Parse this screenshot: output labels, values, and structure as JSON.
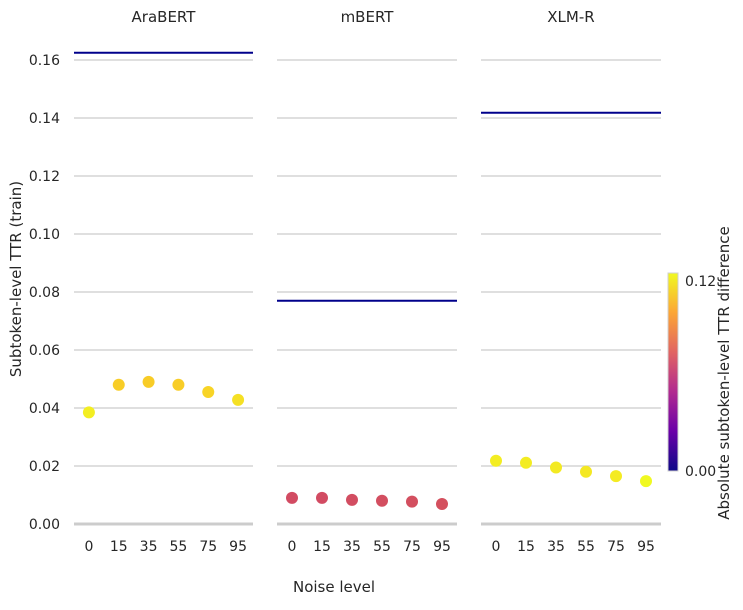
{
  "chart_data": {
    "type": "scatter",
    "ylabel": "Subtoken-level TTR (train)",
    "xlabel": "Noise level",
    "ylim": [
      0.0,
      0.165
    ],
    "y_ticks": [
      0.0,
      0.02,
      0.04,
      0.06,
      0.08,
      0.1,
      0.12,
      0.14,
      0.16
    ],
    "y_tick_labels": [
      "0.00",
      "0.02",
      "0.04",
      "0.06",
      "0.08",
      "0.10",
      "0.12",
      "0.14",
      "0.16"
    ],
    "categories": [
      "0",
      "15",
      "35",
      "55",
      "75",
      "95"
    ],
    "grid": "horizontal",
    "colorbar": {
      "label": "Absolute subtoken-level TTR difference",
      "range": [
        0.0,
        0.125
      ],
      "ticks": [
        0.0,
        0.12
      ],
      "tick_labels": [
        "0.00",
        "0.12"
      ],
      "colormap": "plasma",
      "stops": [
        "#0d0887",
        "#6a00a8",
        "#b12a90",
        "#e16462",
        "#fca636",
        "#f0f921"
      ]
    },
    "reference_line_color": "#00008b",
    "panels": [
      {
        "title": "AraBERT",
        "reference_value": 0.1625,
        "values": [
          0.0385,
          0.048,
          0.049,
          0.048,
          0.0455,
          0.0428
        ],
        "point_colors": [
          "#f3ee22",
          "#f8cd27",
          "#f8cc27",
          "#f8cd27",
          "#f8d426",
          "#f5e024"
        ]
      },
      {
        "title": "mBERT",
        "reference_value": 0.077,
        "values": [
          0.009,
          0.009,
          0.0083,
          0.008,
          0.0077,
          0.0069
        ],
        "point_colors": [
          "#d24b62",
          "#d24b62",
          "#d24d61",
          "#d34e60",
          "#d34f5f",
          "#d4505e"
        ]
      },
      {
        "title": "XLM-R",
        "reference_value": 0.1418,
        "values": [
          0.0218,
          0.0211,
          0.0195,
          0.018,
          0.0165,
          0.0148
        ],
        "point_colors": [
          "#f3ed22",
          "#f3ec22",
          "#f3ea23",
          "#f4e823",
          "#f4eb23",
          "#f0f921"
        ]
      }
    ]
  }
}
